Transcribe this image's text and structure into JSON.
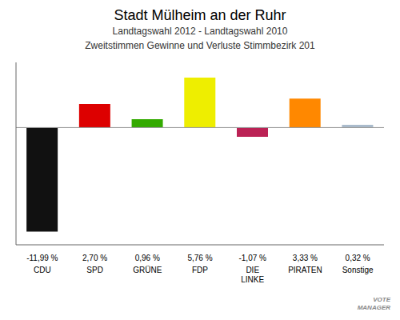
{
  "chart_data": {
    "type": "bar",
    "title": "Stadt Mülheim an der Ruhr",
    "subtitle": [
      "Landtagswahl 2012 - Landtagswahl 2010",
      "Zweitstimmen Gewinne und Verluste Stimmbezirk 201"
    ],
    "categories": [
      "CDU",
      "SPD",
      "GRÜNE",
      "FDP",
      "DIE\nLINKE",
      "PIRATEN",
      "Sonstige"
    ],
    "values": [
      -11.99,
      2.7,
      0.96,
      5.76,
      -1.07,
      3.33,
      0.32
    ],
    "value_labels": [
      "-11,99 %",
      "2,70 %",
      "0,96 %",
      "5,76 %",
      "-1,07 %",
      "3,33 %",
      "0,32 %"
    ],
    "colors": [
      "#111111",
      "#dd0000",
      "#33aa00",
      "#eeee00",
      "#bb2255",
      "#ff8800",
      "#aabbcc"
    ],
    "ylim": [
      -13.5,
      7.5
    ],
    "data_labels": true,
    "tick_labels": false,
    "annotations": [
      "VOTE\nMANAGER"
    ]
  }
}
